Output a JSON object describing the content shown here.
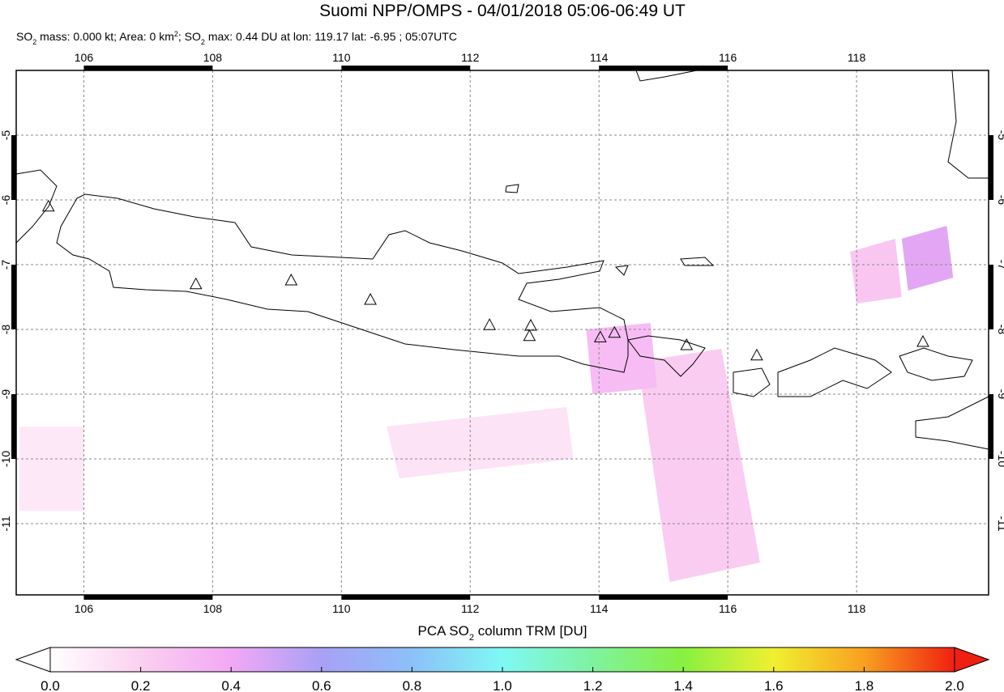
{
  "title": "Suomi NPP/OMPS - 04/01/2018 05:06-06:49 UT",
  "subtitle": [
    "SO",
    "2",
    " mass: 0.000 kt; Area: 0 km",
    "2",
    "; SO",
    "2",
    " max: 0.44 DU at lon: 119.17 lat: -6.95 ; 05:07UTC"
  ],
  "map": {
    "xlim": [
      104.95,
      120.05
    ],
    "ylim": [
      -12.1,
      -4
    ],
    "xticks": [
      106,
      108,
      110,
      112,
      114,
      116,
      118
    ],
    "yticks": [
      -5,
      -6,
      -7,
      -8,
      -9,
      -10,
      -11
    ],
    "grid": true,
    "volcanoes": [
      {
        "lon": 105.45,
        "lat": -6.11
      },
      {
        "lon": 107.74,
        "lat": -7.31
      },
      {
        "lon": 109.22,
        "lat": -7.25
      },
      {
        "lon": 110.45,
        "lat": -7.55
      },
      {
        "lon": 112.3,
        "lat": -7.94
      },
      {
        "lon": 112.94,
        "lat": -7.95
      },
      {
        "lon": 112.92,
        "lat": -8.11
      },
      {
        "lon": 114.02,
        "lat": -8.13
      },
      {
        "lon": 114.24,
        "lat": -8.06
      },
      {
        "lon": 115.36,
        "lat": -8.25
      },
      {
        "lon": 116.45,
        "lat": -8.41
      },
      {
        "lon": 119.03,
        "lat": -8.2
      }
    ],
    "pixels": [
      {
        "corners": [
          [
            114.6,
            -8.5
          ],
          [
            115.9,
            -8.3
          ],
          [
            116.5,
            -11.6
          ],
          [
            115.1,
            -11.9
          ]
        ],
        "value": 0.22
      },
      {
        "corners": [
          [
            113.8,
            -8.0
          ],
          [
            114.8,
            -7.9
          ],
          [
            114.9,
            -8.9
          ],
          [
            113.9,
            -9.0
          ]
        ],
        "value": 0.3
      },
      {
        "corners": [
          [
            117.9,
            -6.8
          ],
          [
            118.6,
            -6.6
          ],
          [
            118.7,
            -7.5
          ],
          [
            118.0,
            -7.6
          ]
        ],
        "value": 0.25
      },
      {
        "corners": [
          [
            118.7,
            -6.6
          ],
          [
            119.4,
            -6.4
          ],
          [
            119.5,
            -7.2
          ],
          [
            118.8,
            -7.4
          ]
        ],
        "value": 0.44
      },
      {
        "corners": [
          [
            110.7,
            -9.5
          ],
          [
            113.5,
            -9.2
          ],
          [
            113.6,
            -10.0
          ],
          [
            110.9,
            -10.3
          ]
        ],
        "value": 0.12
      },
      {
        "corners": [
          [
            105.0,
            -9.5
          ],
          [
            106.0,
            -9.5
          ],
          [
            106.0,
            -10.8
          ],
          [
            105.0,
            -10.8
          ]
        ],
        "value": 0.1
      }
    ]
  },
  "colorbar": {
    "label": [
      "PCA SO",
      "2",
      " column TRM [DU]"
    ],
    "lim": [
      0,
      2
    ],
    "ticks": [
      {
        "value": 0,
        "label": "0.0"
      },
      0.2,
      0.4,
      0.6,
      0.8,
      {
        "value": 1,
        "label": "1.0"
      },
      1.2,
      1.4,
      1.6,
      1.8,
      {
        "value": 2,
        "label": "2.0"
      }
    ],
    "colors": [
      "#ffffff",
      "#fbd0f0",
      "#f2a8f5",
      "#a9a0f5",
      "#8cc0f8",
      "#7ff8f5",
      "#7ff2a0",
      "#88f040",
      "#f0f030",
      "#f8a020",
      "#f02010"
    ]
  }
}
